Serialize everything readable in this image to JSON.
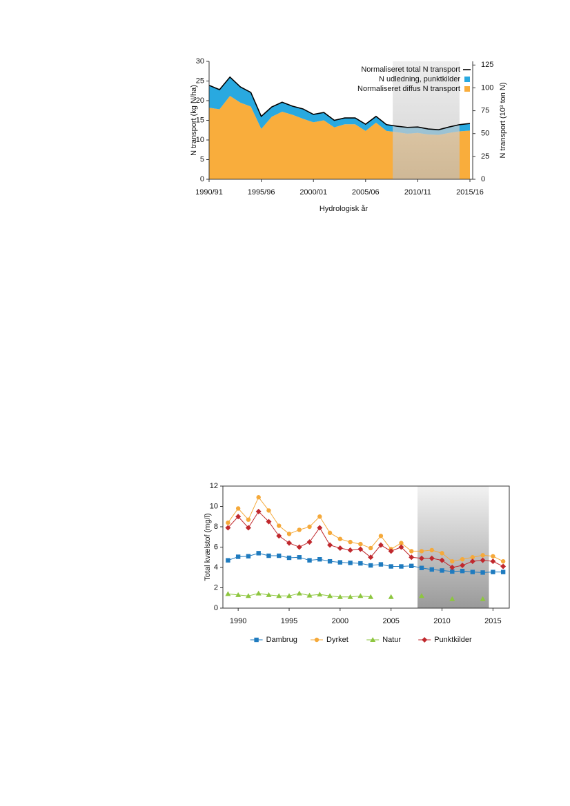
{
  "chart_data": [
    {
      "type": "area",
      "xlabel": "Hydrologisk år",
      "ylabel": "N transport (kg N/ha)",
      "y2label": "N transport (10³ ton N)",
      "x": [
        1990,
        1991,
        1992,
        1993,
        1994,
        1995,
        1996,
        1997,
        1998,
        1999,
        2000,
        2001,
        2002,
        2003,
        2004,
        2005,
        2006,
        2007,
        2008,
        2009,
        2010,
        2011,
        2012,
        2013,
        2014,
        2015
      ],
      "series": [
        {
          "name": "Normaliseret total N transport",
          "color": "#000000",
          "kind": "line",
          "values": [
            23.9,
            22.8,
            26,
            23.5,
            22.1,
            16,
            18.4,
            19.6,
            18.6,
            17.9,
            16.5,
            17,
            15,
            15.6,
            15.6,
            14,
            16,
            13.9,
            13.5,
            13.2,
            13.3,
            12.8,
            12.6,
            13.3,
            13.9,
            14.2
          ]
        },
        {
          "name": "N udledning, punktkilder",
          "color": "#29a9e0",
          "kind": "area",
          "values": [
            5.7,
            5.0,
            4.8,
            4.0,
            3.6,
            3.2,
            2.5,
            2.4,
            2.2,
            2.5,
            2.0,
            2.0,
            1.8,
            1.6,
            1.6,
            1.7,
            1.6,
            1.6,
            1.5,
            1.6,
            1.5,
            1.4,
            1.3,
            1.5,
            1.7,
            1.8
          ]
        },
        {
          "name": "Normaliseret diffus N transport",
          "color": "#f9ad3c",
          "kind": "area",
          "values": [
            18.2,
            17.8,
            21.2,
            19.5,
            18.5,
            12.8,
            15.9,
            17.2,
            16.4,
            15.4,
            14.5,
            15,
            13.2,
            14,
            14,
            12.3,
            14.4,
            12.3,
            12,
            11.6,
            11.8,
            11.4,
            11.3,
            11.8,
            12.2,
            12.4
          ]
        }
      ],
      "xlim": [
        1990,
        2015
      ],
      "xticks": [
        {
          "value": 1990,
          "label": "1990/91"
        },
        {
          "value": 1995,
          "label": "1995/96"
        },
        {
          "value": 2000,
          "label": "2000/01"
        },
        {
          "value": 2005,
          "label": "2005/06"
        },
        {
          "value": 2010,
          "label": "2010/11"
        },
        {
          "value": 2015,
          "label": "2015/16"
        }
      ],
      "ylim": [
        0,
        30
      ],
      "yticks": [
        0,
        5,
        10,
        15,
        20,
        25,
        30
      ],
      "y2lim": [
        0,
        129
      ],
      "y2ticks": [
        0,
        25,
        50,
        75,
        100,
        125
      ],
      "shaded_x": [
        2007.6,
        2014
      ],
      "grid": false,
      "legend": "upper right"
    },
    {
      "type": "line",
      "ylabel": "Total kvælstof (mg/l)",
      "x": [
        1989,
        1990,
        1991,
        1992,
        1993,
        1994,
        1995,
        1996,
        1997,
        1998,
        1999,
        2000,
        2001,
        2002,
        2003,
        2004,
        2005,
        2006,
        2007,
        2008,
        2009,
        2010,
        2011,
        2012,
        2013,
        2014,
        2015,
        2016
      ],
      "series": [
        {
          "name": "Dambrug",
          "color": "#1f7bbf",
          "marker": "square",
          "values": [
            4.7,
            5.05,
            5.1,
            5.4,
            5.15,
            5.15,
            4.95,
            5.0,
            4.7,
            4.8,
            4.6,
            4.5,
            4.45,
            4.4,
            4.2,
            4.3,
            4.1,
            4.1,
            4.15,
            3.95,
            3.8,
            3.7,
            3.6,
            3.65,
            3.55,
            3.5,
            3.55,
            3.55
          ]
        },
        {
          "name": "Dyrket",
          "color": "#f5a93a",
          "marker": "circle",
          "values": [
            8.4,
            9.8,
            8.7,
            10.9,
            9.6,
            8.1,
            7.3,
            7.7,
            8.0,
            9.0,
            7.4,
            6.8,
            6.5,
            6.3,
            5.9,
            7.1,
            5.8,
            6.4,
            5.6,
            5.6,
            5.7,
            5.4,
            4.6,
            4.8,
            5.0,
            5.2,
            5.1,
            4.6
          ]
        },
        {
          "name": "Natur",
          "color": "#8dc63f",
          "marker": "triangle",
          "values": [
            1.4,
            1.3,
            1.2,
            1.45,
            1.3,
            1.2,
            1.2,
            1.45,
            1.25,
            1.35,
            1.2,
            1.1,
            1.1,
            1.2,
            1.1,
            null,
            1.1,
            null,
            null,
            1.2,
            null,
            null,
            0.9,
            null,
            null,
            0.9,
            null,
            null
          ]
        },
        {
          "name": "Punktkilder",
          "color": "#c0282d",
          "marker": "diamond",
          "values": [
            7.9,
            9.0,
            7.9,
            9.5,
            8.5,
            7.1,
            6.4,
            6.0,
            6.5,
            7.9,
            6.2,
            5.9,
            5.7,
            5.8,
            5.0,
            6.2,
            5.6,
            6.0,
            5.0,
            4.9,
            4.9,
            4.7,
            4.0,
            4.2,
            4.6,
            4.7,
            4.6,
            4.1
          ]
        }
      ],
      "xlim": [
        1988.5,
        2016.6
      ],
      "xticks": [
        1990,
        1995,
        2000,
        2005,
        2010,
        2015
      ],
      "ylim": [
        0,
        12
      ],
      "yticks": [
        0,
        2,
        4,
        6,
        8,
        10,
        12
      ],
      "shaded_x": [
        2007.6,
        2014.6
      ],
      "grid": false,
      "legend": "lower center"
    }
  ]
}
